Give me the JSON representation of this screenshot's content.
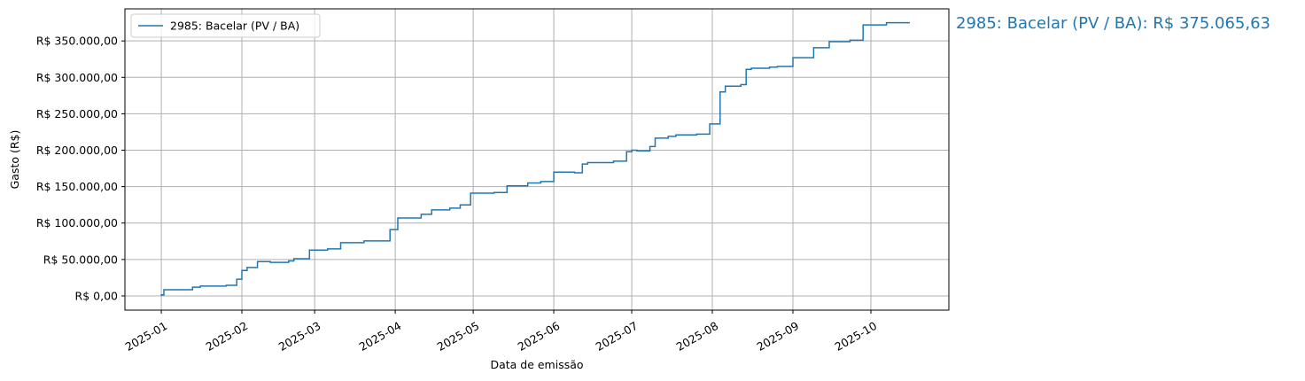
{
  "chart_data": {
    "type": "line",
    "step": true,
    "title": "",
    "xlabel": "Data de emissão",
    "ylabel": "Gasto (R$)",
    "xlim": [
      "2024-12-18",
      "2025-10-31"
    ],
    "ylim": [
      -19500,
      394000
    ],
    "grid": true,
    "legend_placement": "top-left",
    "x_ticks": [
      "2025-01",
      "2025-02",
      "2025-03",
      "2025-04",
      "2025-05",
      "2025-06",
      "2025-07",
      "2025-08",
      "2025-09",
      "2025-10"
    ],
    "y_ticks": [
      0,
      50000,
      100000,
      150000,
      200000,
      250000,
      300000,
      350000
    ],
    "y_tick_labels": [
      "R$ 0,00",
      "R$ 50.000,00",
      "R$ 100.000,00",
      "R$ 150.000,00",
      "R$ 200.000,00",
      "R$ 250.000,00",
      "R$ 300.000,00",
      "R$ 350.000,00"
    ],
    "annotation": "2985: Bacelar (PV / BA): R$ 375.065,63",
    "series": [
      {
        "name": "2985: Bacelar (PV / BA)",
        "color": "#1f77b4",
        "end_date": "2025-10-16",
        "points": [
          [
            "2025-01-01",
            1500
          ],
          [
            "2025-01-02",
            8500
          ],
          [
            "2025-01-13",
            12000
          ],
          [
            "2025-01-16",
            13500
          ],
          [
            "2025-01-26",
            14600
          ],
          [
            "2025-01-30",
            23000
          ],
          [
            "2025-02-01",
            35000
          ],
          [
            "2025-02-03",
            39000
          ],
          [
            "2025-02-07",
            47000
          ],
          [
            "2025-02-12",
            46000
          ],
          [
            "2025-02-19",
            48000
          ],
          [
            "2025-02-21",
            51000
          ],
          [
            "2025-02-27",
            63000
          ],
          [
            "2025-03-06",
            64500
          ],
          [
            "2025-03-11",
            73000
          ],
          [
            "2025-03-20",
            75500
          ],
          [
            "2025-03-30",
            91000
          ],
          [
            "2025-04-02",
            107000
          ],
          [
            "2025-04-11",
            112000
          ],
          [
            "2025-04-15",
            118000
          ],
          [
            "2025-04-22",
            120500
          ],
          [
            "2025-04-26",
            125000
          ],
          [
            "2025-04-30",
            141000
          ],
          [
            "2025-05-09",
            142000
          ],
          [
            "2025-05-14",
            151000
          ],
          [
            "2025-05-22",
            155000
          ],
          [
            "2025-05-27",
            157000
          ],
          [
            "2025-06-01",
            170000
          ],
          [
            "2025-06-09",
            169000
          ],
          [
            "2025-06-12",
            181000
          ],
          [
            "2025-06-14",
            183000
          ],
          [
            "2025-06-24",
            185000
          ],
          [
            "2025-06-29",
            198000
          ],
          [
            "2025-07-01",
            200000
          ],
          [
            "2025-07-03",
            199000
          ],
          [
            "2025-07-08",
            205000
          ],
          [
            "2025-07-10",
            216500
          ],
          [
            "2025-07-15",
            219000
          ],
          [
            "2025-07-18",
            221000
          ],
          [
            "2025-07-26",
            222000
          ],
          [
            "2025-07-31",
            236000
          ],
          [
            "2025-08-04",
            280000
          ],
          [
            "2025-08-06",
            288000
          ],
          [
            "2025-08-12",
            290000
          ],
          [
            "2025-08-14",
            311000
          ],
          [
            "2025-08-16",
            312500
          ],
          [
            "2025-08-23",
            314000
          ],
          [
            "2025-08-26",
            315000
          ],
          [
            "2025-09-01",
            327000
          ],
          [
            "2025-09-09",
            340600
          ],
          [
            "2025-09-15",
            349000
          ],
          [
            "2025-09-23",
            351000
          ],
          [
            "2025-09-28",
            372000
          ],
          [
            "2025-10-07",
            375000
          ],
          [
            "2025-10-10",
            375065.63
          ]
        ]
      }
    ]
  }
}
